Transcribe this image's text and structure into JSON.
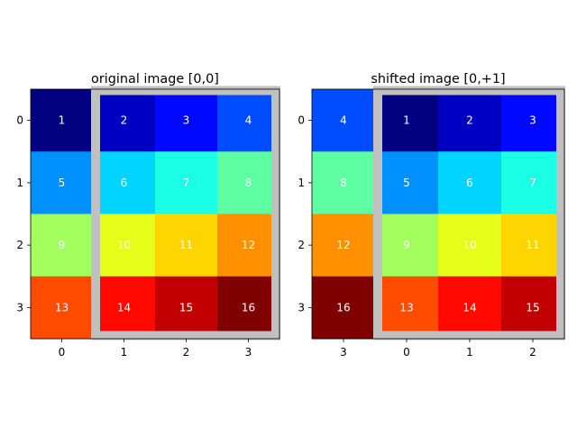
{
  "chart_data": [
    {
      "type": "heatmap",
      "title": "original image [0,0]",
      "colormap": "jet",
      "value_range": [
        1,
        16
      ],
      "x_tick_labels": [
        "0",
        "1",
        "2",
        "3"
      ],
      "y_tick_labels": [
        "0",
        "1",
        "2",
        "3"
      ],
      "values": [
        [
          1,
          2,
          3,
          4
        ],
        [
          5,
          6,
          7,
          8
        ],
        [
          9,
          10,
          11,
          12
        ],
        [
          13,
          14,
          15,
          16
        ]
      ],
      "highlight_region": {
        "rows": [
          0,
          3
        ],
        "cols": [
          1,
          3
        ],
        "color": "#c0c0c0"
      }
    },
    {
      "type": "heatmap",
      "title": "shifted image [0,+1]",
      "colormap": "jet",
      "value_range": [
        1,
        16
      ],
      "x_tick_labels": [
        "3",
        "0",
        "1",
        "2"
      ],
      "y_tick_labels": [
        "0",
        "1",
        "2",
        "3"
      ],
      "values": [
        [
          4,
          1,
          2,
          3
        ],
        [
          8,
          5,
          6,
          7
        ],
        [
          12,
          9,
          10,
          11
        ],
        [
          16,
          13,
          14,
          15
        ]
      ],
      "highlight_region": {
        "rows": [
          0,
          3
        ],
        "cols": [
          1,
          3
        ],
        "color": "#c0c0c0"
      }
    }
  ]
}
